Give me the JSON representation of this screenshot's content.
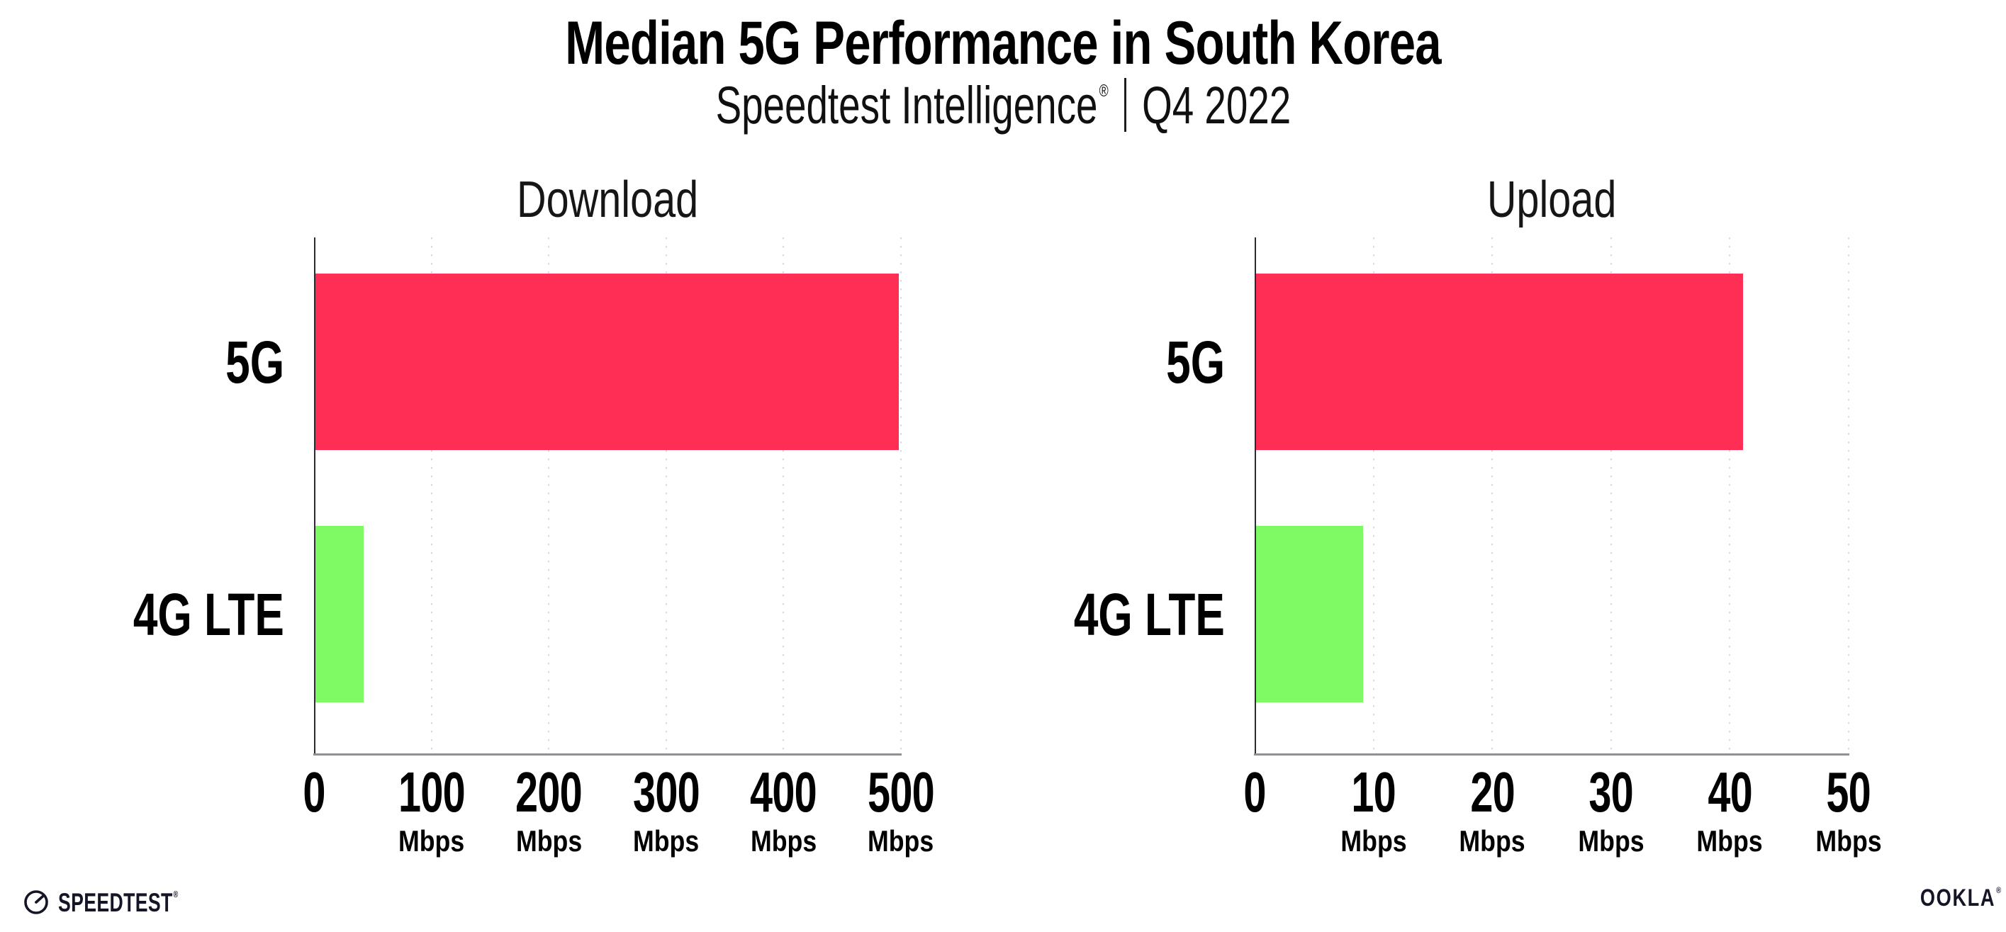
{
  "page": {
    "background": "#ffffff"
  },
  "header": {
    "title": "Median 5G Performance in South Korea",
    "subtitle": {
      "brand": "Speedtest Intelligence",
      "registered": "®",
      "separator": "|",
      "period": "Q4 2022"
    }
  },
  "chart_data": [
    {
      "type": "bar",
      "orientation": "horizontal",
      "title": "Download",
      "categories": [
        "5G",
        "4G LTE"
      ],
      "values": [
        497,
        41
      ],
      "unit": "Mbps",
      "xlim": [
        0,
        500
      ],
      "xticks": [
        0,
        100,
        200,
        300,
        400,
        500
      ],
      "grid": "vertical-dotted",
      "legend": "none",
      "bar_colors": [
        "#FF2E55",
        "#80FA64"
      ]
    },
    {
      "type": "bar",
      "orientation": "horizontal",
      "title": "Upload",
      "categories": [
        "5G",
        "4G LTE"
      ],
      "values": [
        41,
        9
      ],
      "unit": "Mbps",
      "xlim": [
        0,
        50
      ],
      "xticks": [
        0,
        10,
        20,
        30,
        40,
        50
      ],
      "grid": "vertical-dotted",
      "legend": "none",
      "bar_colors": [
        "#FF2E55",
        "#80FA64"
      ]
    }
  ],
  "footer": {
    "speedtest_logo_text": "SPEEDTEST",
    "speedtest_mark": "®",
    "ookla_logo_text": "OOKLA",
    "ookla_mark": "®"
  },
  "colors": {
    "bar_5g": "#FF2E55",
    "bar_4g_lte": "#80FA64",
    "grid_dot": "#d9dae3",
    "x_axis_line": "#8f8f98",
    "y_axis_line": "#2b2b31",
    "text": "#000000"
  }
}
